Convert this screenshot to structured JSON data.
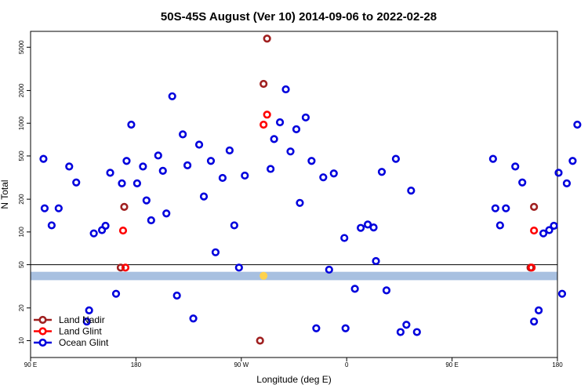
{
  "chart_data": {
    "type": "scatter",
    "title": "50S-45S August (Ver 10)   2014-09-06 to 2022-02-28",
    "xlabel": "Longitude (deg E)",
    "ylabel": "N Total",
    "x_ticks": [
      {
        "value": 90,
        "label": "90 E"
      },
      {
        "value": 180,
        "label": "180"
      },
      {
        "value": 270,
        "label": "90 W"
      },
      {
        "value": 360,
        "label": "0"
      },
      {
        "value": 450,
        "label": "90 E"
      },
      {
        "value": 540,
        "label": "180"
      }
    ],
    "xlim": [
      90,
      540
    ],
    "y_scale": "log",
    "ylim": [
      7,
      7000
    ],
    "y_ticks": [
      10,
      20,
      50,
      100,
      200,
      500,
      1000,
      2000,
      5000
    ],
    "reference_line_y": 50,
    "band": {
      "y_low": 36,
      "y_high": 43,
      "color": "#a8c0e0"
    },
    "colors": {
      "land_nadir": "#a02020",
      "land_glint": "#ff0000",
      "ocean_glint": "#0000dd",
      "band_marker": "#ffd24d"
    },
    "legend": {
      "position": "bottom-left",
      "entries": [
        {
          "label": "Land Nadir",
          "color": "#a02020"
        },
        {
          "label": "Land Glint",
          "color": "#ff0000"
        },
        {
          "label": "Ocean Glint",
          "color": "#0000dd"
        }
      ]
    },
    "series": [
      {
        "name": "Land Nadir",
        "color": "#a02020",
        "points": [
          [
            167,
            47
          ],
          [
            170,
            170
          ],
          [
            286,
            10
          ],
          [
            289,
            2300
          ],
          [
            292,
            6000
          ],
          [
            517,
            47
          ],
          [
            520,
            170
          ]
        ]
      },
      {
        "name": "Land Glint",
        "color": "#ff0000",
        "points": [
          [
            169,
            103
          ],
          [
            171,
            47
          ],
          [
            289,
            970
          ],
          [
            292,
            1200
          ],
          [
            518,
            47
          ],
          [
            520,
            103
          ]
        ]
      },
      {
        "name": "Ocean Glint",
        "color": "#0000dd",
        "points": [
          [
            101,
            470
          ],
          [
            102,
            165
          ],
          [
            108,
            115
          ],
          [
            114,
            165
          ],
          [
            123,
            400
          ],
          [
            129,
            285
          ],
          [
            138,
            15
          ],
          [
            140,
            19
          ],
          [
            144,
            97
          ],
          [
            151,
            104
          ],
          [
            154,
            114
          ],
          [
            158,
            350
          ],
          [
            163,
            27
          ],
          [
            168,
            280
          ],
          [
            172,
            450
          ],
          [
            176,
            970
          ],
          [
            181,
            280
          ],
          [
            186,
            400
          ],
          [
            189,
            195
          ],
          [
            193,
            128
          ],
          [
            199,
            505
          ],
          [
            203,
            365
          ],
          [
            206,
            148
          ],
          [
            211,
            1770
          ],
          [
            215,
            26
          ],
          [
            220,
            790
          ],
          [
            224,
            410
          ],
          [
            229,
            16
          ],
          [
            234,
            635
          ],
          [
            238,
            212
          ],
          [
            244,
            450
          ],
          [
            248,
            65
          ],
          [
            254,
            314
          ],
          [
            260,
            562
          ],
          [
            264,
            115
          ],
          [
            268,
            47
          ],
          [
            273,
            330
          ],
          [
            295,
            380
          ],
          [
            298,
            715
          ],
          [
            303,
            1020
          ],
          [
            308,
            2050
          ],
          [
            312,
            550
          ],
          [
            317,
            880
          ],
          [
            320,
            185
          ],
          [
            325,
            1130
          ],
          [
            330,
            450
          ],
          [
            334,
            13
          ],
          [
            340,
            318
          ],
          [
            345,
            45
          ],
          [
            349,
            345
          ],
          [
            358,
            88
          ],
          [
            359,
            13
          ],
          [
            367,
            30
          ],
          [
            372,
            109
          ],
          [
            378,
            117
          ],
          [
            383,
            110
          ],
          [
            385,
            54
          ],
          [
            390,
            357
          ],
          [
            394,
            29
          ],
          [
            402,
            470
          ],
          [
            406,
            12
          ],
          [
            411,
            14
          ],
          [
            415,
            240
          ],
          [
            420,
            12
          ],
          [
            485,
            470
          ],
          [
            487,
            165
          ],
          [
            491,
            115
          ],
          [
            496,
            165
          ],
          [
            504,
            400
          ],
          [
            510,
            285
          ],
          [
            520,
            15
          ],
          [
            524,
            19
          ],
          [
            528,
            97
          ],
          [
            533,
            104
          ],
          [
            537,
            114
          ],
          [
            541,
            350
          ],
          [
            544,
            27
          ],
          [
            548,
            280
          ],
          [
            553,
            450
          ],
          [
            557,
            970
          ]
        ]
      }
    ]
  }
}
